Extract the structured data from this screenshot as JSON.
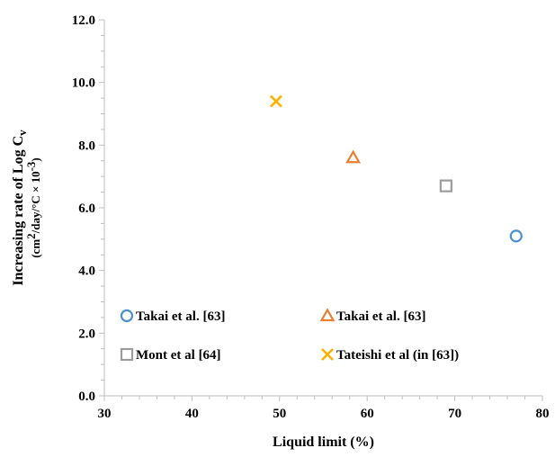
{
  "chart_data": {
    "type": "scatter",
    "title": "",
    "xlabel": "Liquid limit (%)",
    "ylabel_line1": "Increasing rate of Log C",
    "ylabel_line1_sub": "v",
    "ylabel_line2_a": "(cm",
    "ylabel_line2_b": "2",
    "ylabel_line2_c": "/day/°C × 10",
    "ylabel_line2_d": "-3",
    "ylabel_line2_e": ")",
    "xlim": [
      30,
      80
    ],
    "ylim": [
      0,
      12
    ],
    "x_ticks": [
      "30",
      "40",
      "50",
      "60",
      "70",
      "80"
    ],
    "y_ticks": [
      "0.0",
      "2.0",
      "4.0",
      "6.0",
      "8.0",
      "10.0",
      "12.0"
    ],
    "grid": false,
    "legend": "inside-lower-left",
    "series": [
      {
        "name": "Takai et al. [63]",
        "marker": "circle",
        "color": "#4a90d0",
        "x": [
          77.0
        ],
        "y": [
          5.1
        ]
      },
      {
        "name": "Takai et al. [63]",
        "marker": "triangle",
        "color": "#ed7d31",
        "x": [
          58.4
        ],
        "y": [
          7.6
        ]
      },
      {
        "name": "Mont et al [64]",
        "marker": "square",
        "color": "#9c9c9c",
        "x": [
          69.0
        ],
        "y": [
          6.7
        ]
      },
      {
        "name": "Tateishi et al (in [63])",
        "marker": "x",
        "color": "#ffb000",
        "x": [
          49.6
        ],
        "y": [
          9.4
        ]
      }
    ]
  }
}
